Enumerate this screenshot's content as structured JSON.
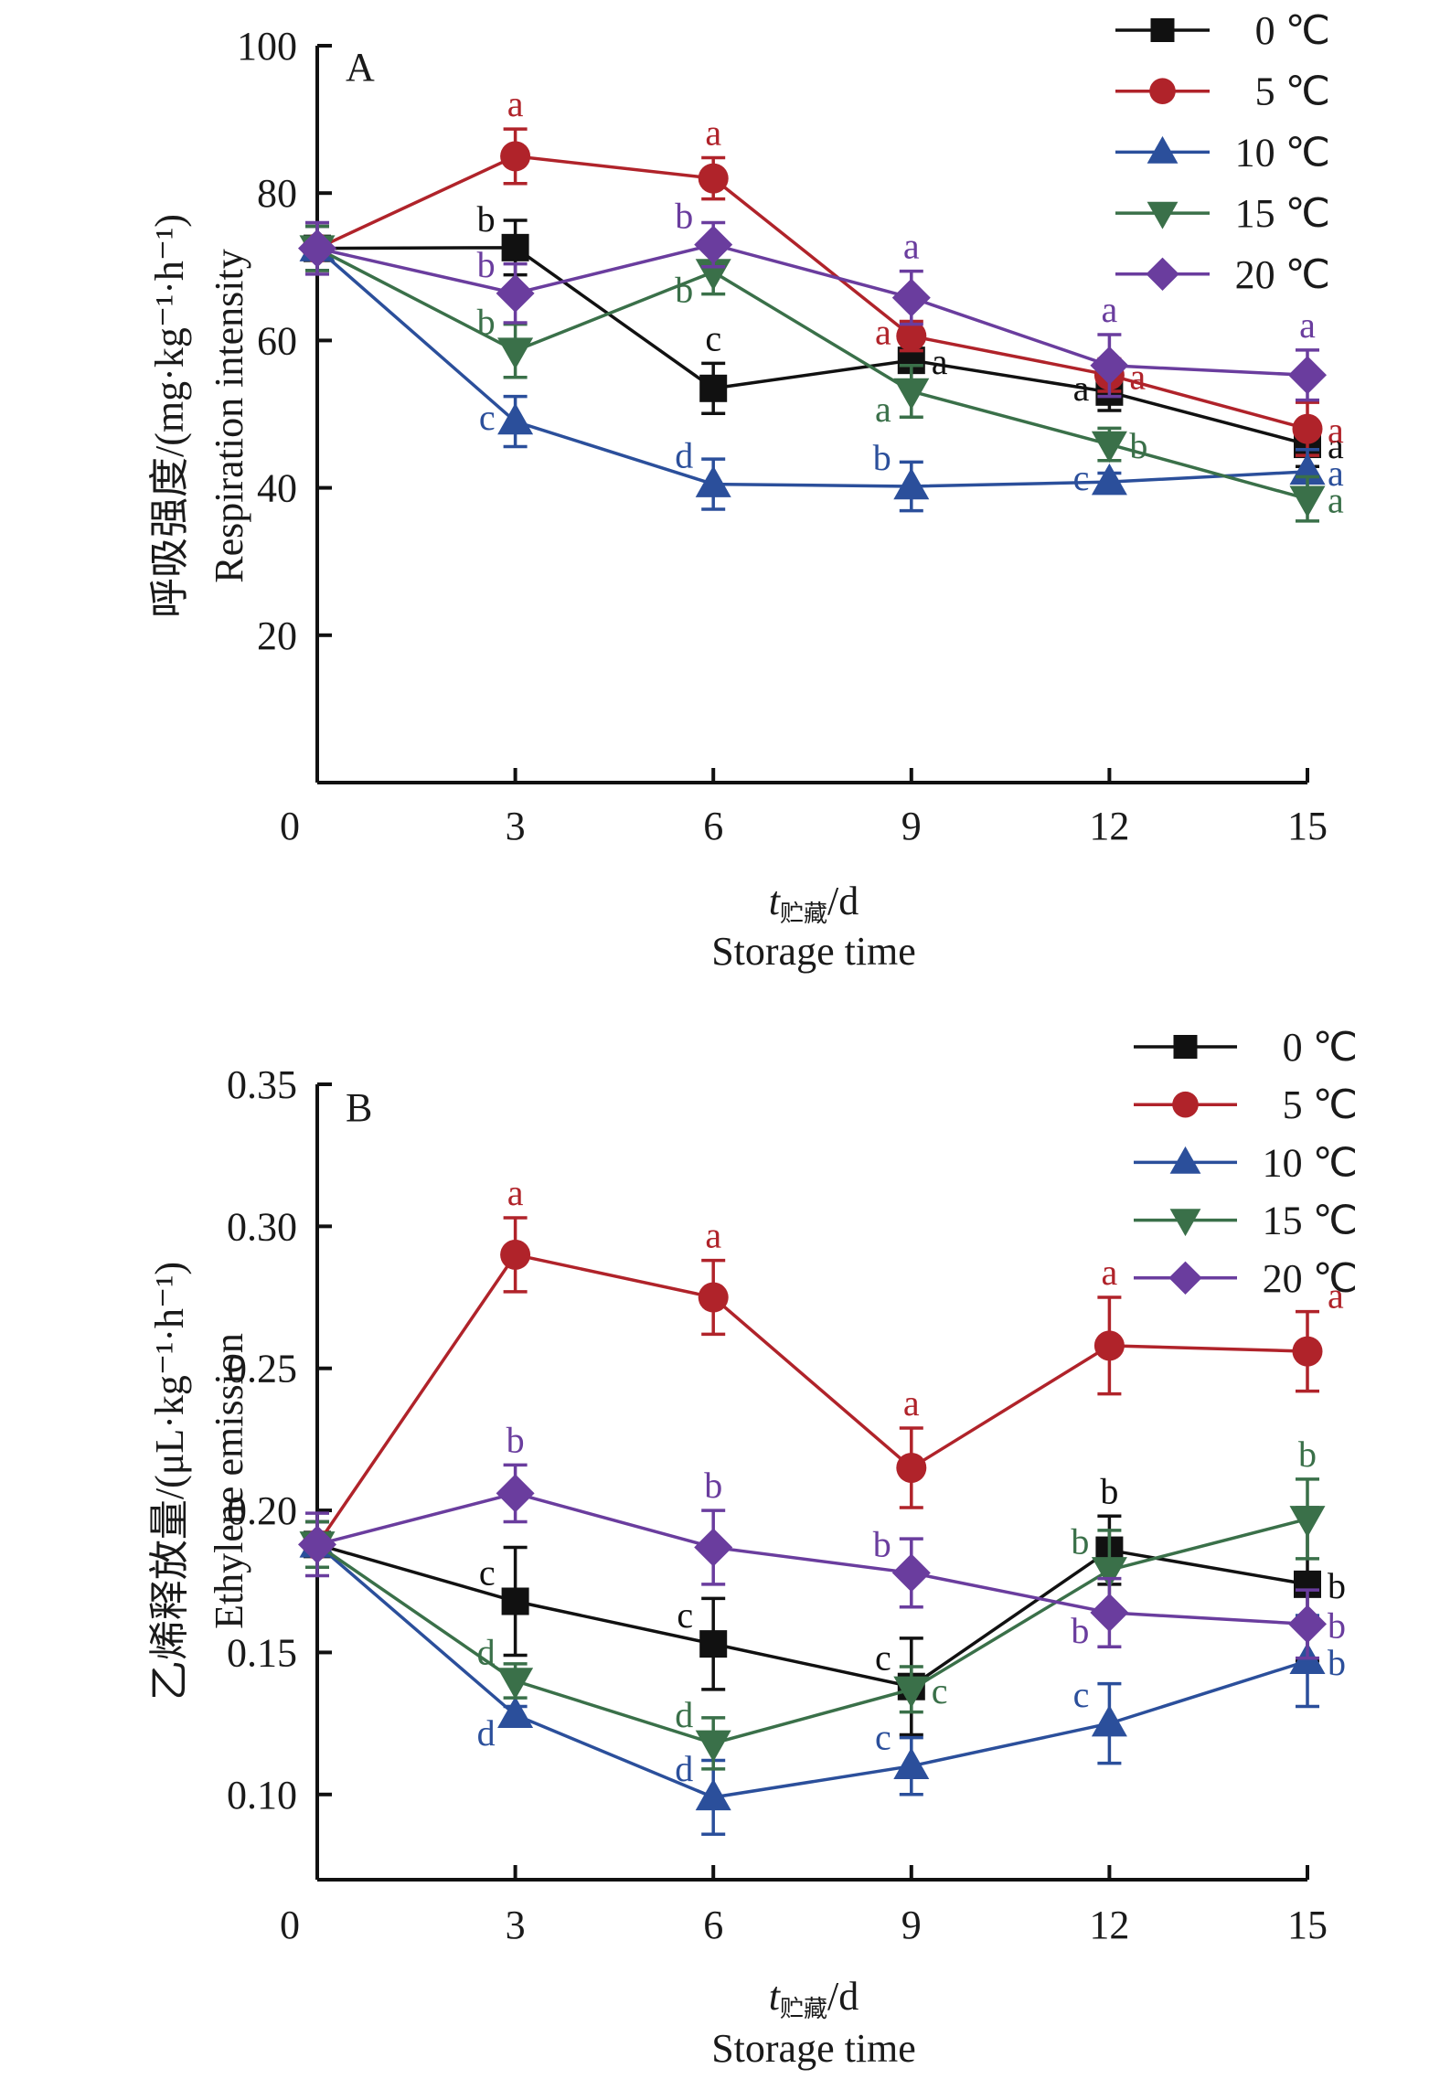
{
  "chart_data": [
    {
      "type": "line",
      "panel_label": "A",
      "ylabel_cn": "呼吸强度/(mg·kg⁻¹·h⁻¹)",
      "ylabel_en": "Respiration intensity",
      "xlabel_var": "t",
      "xlabel_sub": "贮藏",
      "xlabel_unit": "/d",
      "xlabel_en": "Storage time",
      "x": [
        0,
        3,
        6,
        9,
        12,
        15
      ],
      "xticks": [
        "0",
        "3",
        "6",
        "9",
        "12",
        "15"
      ],
      "ylim": [
        0,
        100
      ],
      "yticks": [
        20,
        40,
        60,
        80,
        100
      ],
      "ytick_labels": [
        "20",
        "40",
        "60",
        "80",
        "100"
      ],
      "grid": false,
      "legend_position": "top-right",
      "series": [
        {
          "name": "0 ℃",
          "color": "#111111",
          "marker": "square",
          "values": [
            72.5,
            72.6,
            53.5,
            57.3,
            53.0,
            45.9
          ],
          "errors": [
            3.0,
            3.7,
            3.4,
            3.4,
            2.5,
            3.0
          ],
          "letters": [
            "",
            "b",
            "c",
            "a",
            "a",
            "a"
          ],
          "letter_pos": [
            "",
            "above-left",
            "above",
            "right",
            "left",
            "right"
          ]
        },
        {
          "name": "5 ℃",
          "color": "#B0232A",
          "marker": "circle",
          "values": [
            72.5,
            85.0,
            82.0,
            60.6,
            55.3,
            48.0
          ],
          "errors": [
            3.0,
            3.7,
            2.8,
            2.0,
            2.2,
            3.6
          ],
          "letters": [
            "",
            "a",
            "a",
            "a",
            "a",
            "a"
          ],
          "letter_pos": [
            "",
            "above",
            "above",
            "left",
            "right",
            "right"
          ]
        },
        {
          "name": "10 ℃",
          "color": "#2B4F9B",
          "marker": "triangle-up",
          "values": [
            72.5,
            49.0,
            40.5,
            40.2,
            40.8,
            42.2
          ],
          "errors": [
            3.0,
            3.4,
            3.4,
            3.3,
            1.2,
            3.0
          ],
          "letters": [
            "",
            "c",
            "d",
            "b",
            "c",
            "a"
          ],
          "letter_pos": [
            "",
            "left",
            "above-left",
            "above-left",
            "left",
            "right"
          ]
        },
        {
          "name": "15 ℃",
          "color": "#3A7049",
          "marker": "triangle-down",
          "values": [
            72.5,
            58.6,
            69.3,
            53.1,
            45.9,
            38.5
          ],
          "errors": [
            3.0,
            3.6,
            3.0,
            3.5,
            2.2,
            3.0
          ],
          "letters": [
            "",
            "b",
            "b",
            "a",
            "b",
            "a"
          ],
          "letter_pos": [
            "",
            "above-left",
            "below-left",
            "below-left",
            "right",
            "right"
          ]
        },
        {
          "name": "20 ℃",
          "color": "#6A3D9E",
          "marker": "diamond",
          "values": [
            72.5,
            66.4,
            73.0,
            65.8,
            56.6,
            55.3
          ],
          "errors": [
            3.5,
            4.0,
            3.0,
            3.6,
            4.2,
            3.4
          ],
          "letters": [
            "",
            "b",
            "b",
            "a",
            "a",
            "a"
          ],
          "letter_pos": [
            "",
            "above-left",
            "above-left",
            "above",
            "above",
            "above"
          ]
        }
      ]
    },
    {
      "type": "line",
      "panel_label": "B",
      "ylabel_cn": "乙烯释放量/(μL·kg⁻¹·h⁻¹)",
      "ylabel_en": "Ethylene emission",
      "xlabel_var": "t",
      "xlabel_sub": "贮藏",
      "xlabel_unit": "/d",
      "xlabel_en": "Storage time",
      "x": [
        0,
        3,
        6,
        9,
        12,
        15
      ],
      "xticks": [
        "0",
        "3",
        "6",
        "9",
        "12",
        "15"
      ],
      "ylim": [
        0.07,
        0.35
      ],
      "yticks": [
        0.1,
        0.15,
        0.2,
        0.25,
        0.3,
        0.35
      ],
      "ytick_labels": [
        "0.10",
        "0.15",
        "0.20",
        "0.25",
        "0.30",
        "0.35"
      ],
      "grid": false,
      "legend_position": "top-right",
      "series": [
        {
          "name": "0 ℃",
          "color": "#111111",
          "marker": "square",
          "values": [
            0.188,
            0.168,
            0.153,
            0.138,
            0.186,
            0.174
          ],
          "errors": [
            0.008,
            0.019,
            0.016,
            0.017,
            0.012,
            0.027
          ],
          "letters": [
            "",
            "c",
            "c",
            "c",
            "b",
            "b"
          ],
          "letter_pos": [
            "",
            "above-left",
            "above-left",
            "above-left",
            "above",
            "right"
          ]
        },
        {
          "name": "5 ℃",
          "color": "#B0232A",
          "marker": "circle",
          "values": [
            0.188,
            0.29,
            0.275,
            0.215,
            0.258,
            0.256
          ],
          "errors": [
            0.008,
            0.013,
            0.013,
            0.014,
            0.017,
            0.014
          ],
          "letters": [
            "",
            "a",
            "a",
            "a",
            "a",
            "a"
          ],
          "letter_pos": [
            "",
            "above",
            "above",
            "above",
            "above",
            "above-right"
          ]
        },
        {
          "name": "10 ℃",
          "color": "#2B4F9B",
          "marker": "triangle-up",
          "values": [
            0.188,
            0.128,
            0.099,
            0.11,
            0.125,
            0.147
          ],
          "errors": [
            0.008,
            0.003,
            0.013,
            0.01,
            0.014,
            0.016
          ],
          "letters": [
            "",
            "d",
            "d",
            "c",
            "c",
            "b"
          ],
          "letter_pos": [
            "",
            "below-left",
            "above-left",
            "above-left",
            "above-left",
            "right"
          ]
        },
        {
          "name": "15 ℃",
          "color": "#3A7049",
          "marker": "triangle-down",
          "values": [
            0.188,
            0.14,
            0.118,
            0.137,
            0.179,
            0.197
          ],
          "errors": [
            0.008,
            0.006,
            0.009,
            0.008,
            0.014,
            0.014
          ],
          "letters": [
            "",
            "d",
            "d",
            "c",
            "b",
            "b"
          ],
          "letter_pos": [
            "",
            "above-left",
            "above-left",
            "right",
            "above-left",
            "above"
          ]
        },
        {
          "name": "20 ℃",
          "color": "#6A3D9E",
          "marker": "diamond",
          "values": [
            0.188,
            0.206,
            0.187,
            0.178,
            0.164,
            0.16
          ],
          "errors": [
            0.011,
            0.01,
            0.013,
            0.012,
            0.012,
            0.012
          ],
          "letters": [
            "",
            "b",
            "b",
            "b",
            "b",
            "b"
          ],
          "letter_pos": [
            "",
            "above",
            "above",
            "above-left",
            "below-left",
            "right"
          ]
        }
      ]
    }
  ]
}
